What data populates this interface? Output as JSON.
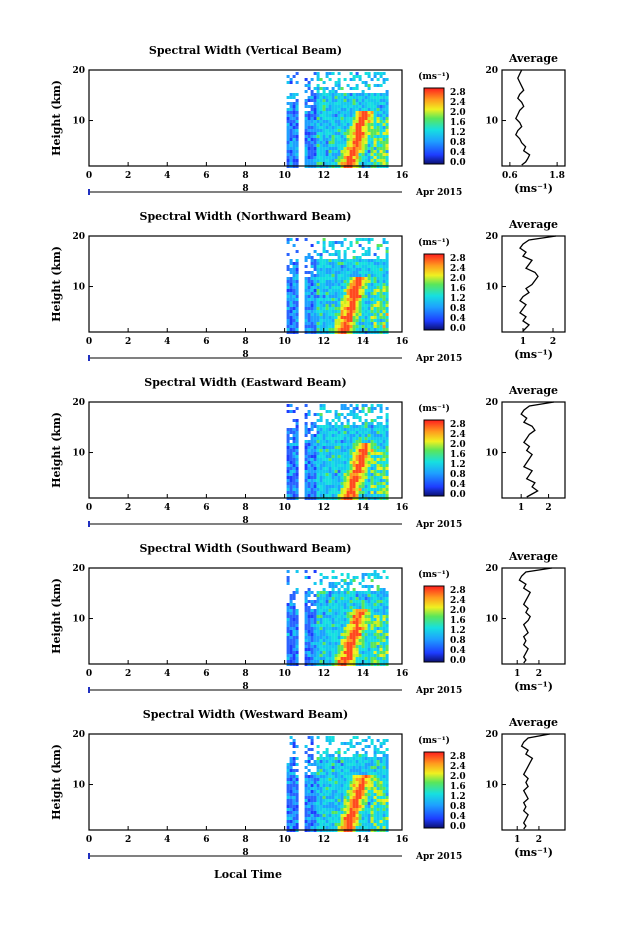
{
  "chart_data": [
    {
      "type": "heatmap",
      "title": "Spectral Width (Vertical Beam)",
      "ylabel": "Height (km)",
      "x_ticks": [
        "0",
        "2",
        "4",
        "6",
        "8",
        "10",
        "12",
        "14",
        "16"
      ],
      "y_ticks": [
        "10",
        "20"
      ],
      "xlim": [
        0,
        16
      ],
      "ylim": [
        1,
        20
      ],
      "date_label": "Apr 2015",
      "date_day": "8",
      "colorbar": {
        "unit": "(ms⁻¹)",
        "ticks": [
          "2.8",
          "2.4",
          "2.0",
          "1.6",
          "1.2",
          "0.8",
          "0.4",
          "0.0"
        ]
      },
      "data_start_hour": 10.1,
      "data_end_hour": 15.3,
      "hotspot_hour": 13.9
    },
    {
      "type": "heatmap",
      "title": "Spectral Width (Northward Beam)",
      "ylabel": "Height (km)",
      "x_ticks": [
        "0",
        "2",
        "4",
        "6",
        "8",
        "10",
        "12",
        "14",
        "16"
      ],
      "y_ticks": [
        "10",
        "20"
      ],
      "xlim": [
        0,
        16
      ],
      "ylim": [
        1,
        20
      ],
      "date_label": "Apr 2015",
      "date_day": "8",
      "colorbar": {
        "unit": "(ms⁻¹)",
        "ticks": [
          "2.8",
          "2.4",
          "2.0",
          "1.6",
          "1.2",
          "0.8",
          "0.4",
          "0.0"
        ]
      },
      "data_start_hour": 10.1,
      "data_end_hour": 15.3,
      "hotspot_hour": 13.6
    },
    {
      "type": "heatmap",
      "title": "Spectral Width (Eastward Beam)",
      "ylabel": "Height (km)",
      "x_ticks": [
        "0",
        "2",
        "4",
        "6",
        "8",
        "10",
        "12",
        "14",
        "16"
      ],
      "y_ticks": [
        "10",
        "20"
      ],
      "xlim": [
        0,
        16
      ],
      "ylim": [
        1,
        20
      ],
      "date_label": "Apr 2015",
      "date_day": "8",
      "colorbar": {
        "unit": "(ms⁻¹)",
        "ticks": [
          "2.8",
          "2.4",
          "2.0",
          "1.6",
          "1.2",
          "0.8",
          "0.4",
          "0.0"
        ]
      },
      "data_start_hour": 10.1,
      "data_end_hour": 15.3,
      "hotspot_hour": 13.9
    },
    {
      "type": "heatmap",
      "title": "Spectral Width (Southward Beam)",
      "ylabel": "Height (km)",
      "x_ticks": [
        "0",
        "2",
        "4",
        "6",
        "8",
        "10",
        "12",
        "14",
        "16"
      ],
      "y_ticks": [
        "10",
        "20"
      ],
      "xlim": [
        0,
        16
      ],
      "ylim": [
        1,
        20
      ],
      "date_label": "Apr 2015",
      "date_day": "8",
      "colorbar": {
        "unit": "(ms⁻¹)",
        "ticks": [
          "2.8",
          "2.4",
          "2.0",
          "1.6",
          "1.2",
          "0.8",
          "0.4",
          "0.0"
        ]
      },
      "data_start_hour": 10.1,
      "data_end_hour": 15.3,
      "hotspot_hour": 13.7
    },
    {
      "type": "heatmap",
      "title": "Spectral Width (Westward Beam)",
      "ylabel": "Height (km)",
      "x_ticks": [
        "0",
        "2",
        "4",
        "6",
        "8",
        "10",
        "12",
        "14",
        "16"
      ],
      "y_ticks": [
        "10",
        "20"
      ],
      "xlim": [
        0,
        16
      ],
      "ylim": [
        1,
        20
      ],
      "date_label": "Apr 2015",
      "date_day": "8",
      "colorbar": {
        "unit": "(ms⁻¹)",
        "ticks": [
          "2.8",
          "2.4",
          "2.0",
          "1.6",
          "1.2",
          "0.8",
          "0.4",
          "0.0"
        ]
      },
      "data_start_hour": 10.1,
      "data_end_hour": 15.3,
      "hotspot_hour": 13.8
    },
    {
      "type": "line",
      "title": "Average",
      "xlabel": "(ms⁻¹)",
      "x_ticks": [
        "0.6",
        "1.8"
      ],
      "xlim": [
        0.4,
        2.0
      ],
      "y_ticks": [
        "10",
        "20"
      ],
      "ylim": [
        1,
        20
      ],
      "series": [
        {
          "x": [
            0.9,
            0.85,
            0.8,
            0.85,
            0.9,
            0.95,
            0.85,
            0.8,
            0.9,
            0.95,
            0.85,
            0.8,
            0.75,
            0.85,
            0.9,
            0.8,
            0.75,
            0.85,
            0.9,
            1.0,
            0.95,
            1.1,
            1.05,
            1.0,
            0.9
          ],
          "y": [
            20,
            19.2,
            18.4,
            17.6,
            16.8,
            16,
            15.2,
            14.4,
            13.6,
            12.8,
            12,
            11.2,
            10.4,
            9.6,
            8.8,
            8,
            7.2,
            6.4,
            5.6,
            4.8,
            4,
            3.2,
            2.4,
            1.8,
            1.2
          ]
        }
      ]
    },
    {
      "type": "line",
      "title": "Average",
      "xlabel": "(ms⁻¹)",
      "x_ticks": [
        "1",
        "2"
      ],
      "xlim": [
        0.3,
        2.4
      ],
      "y_ticks": [
        "10",
        "20"
      ],
      "ylim": [
        1,
        20
      ],
      "series": [
        {
          "x": [
            2.1,
            1.2,
            1.0,
            0.9,
            1.1,
            1.0,
            1.3,
            1.2,
            1.1,
            1.4,
            1.5,
            1.4,
            1.3,
            1.1,
            1.2,
            1.0,
            0.9,
            1.1,
            1.0,
            0.9,
            1.1,
            1.0,
            1.2,
            1.1,
            1.0
          ],
          "y": [
            20,
            19.2,
            18.4,
            17.6,
            16.8,
            16,
            15.2,
            14.4,
            13.6,
            12.8,
            12,
            11.2,
            10.4,
            9.6,
            8.8,
            8,
            7.2,
            6.4,
            5.6,
            4.8,
            4,
            3.2,
            2.4,
            1.8,
            1.2
          ]
        }
      ]
    },
    {
      "type": "line",
      "title": "Average",
      "xlabel": "",
      "x_ticks": [
        "1",
        "2"
      ],
      "xlim": [
        0.3,
        2.6
      ],
      "y_ticks": [
        "10",
        "20"
      ],
      "ylim": [
        1,
        20
      ],
      "series": [
        {
          "x": [
            2.2,
            1.3,
            1.1,
            1.0,
            1.2,
            1.1,
            1.4,
            1.5,
            1.3,
            1.2,
            1.1,
            1.3,
            1.2,
            1.4,
            1.3,
            1.2,
            1.1,
            1.4,
            1.3,
            1.2,
            1.5,
            1.4,
            1.6,
            1.4,
            1.2
          ],
          "y": [
            20,
            19.2,
            18.4,
            17.6,
            16.8,
            16,
            15.2,
            14.4,
            13.6,
            12.8,
            12,
            11.2,
            10.4,
            9.6,
            8.8,
            8,
            7.2,
            6.4,
            5.6,
            4.8,
            4,
            3.2,
            2.4,
            1.8,
            1.2
          ]
        }
      ]
    },
    {
      "type": "line",
      "title": "Average",
      "xlabel": "(ms⁻¹)",
      "x_ticks": [
        "1",
        "2"
      ],
      "xlim": [
        0.3,
        3.2
      ],
      "y_ticks": [
        "10",
        "20"
      ],
      "ylim": [
        1,
        20
      ],
      "series": [
        {
          "x": [
            2.6,
            1.4,
            1.2,
            1.1,
            1.4,
            1.3,
            1.6,
            1.5,
            1.4,
            1.3,
            1.5,
            1.4,
            1.6,
            1.5,
            1.3,
            1.4,
            1.5,
            1.3,
            1.4,
            1.3,
            1.5,
            1.4,
            1.3,
            1.4,
            1.3
          ],
          "y": [
            20,
            19.2,
            18.4,
            17.6,
            16.8,
            16,
            15.2,
            14.4,
            13.6,
            12.8,
            12,
            11.2,
            10.4,
            9.6,
            8.8,
            8,
            7.2,
            6.4,
            5.6,
            4.8,
            4,
            3.2,
            2.4,
            1.8,
            1.2
          ]
        }
      ]
    },
    {
      "type": "line",
      "title": "Average",
      "xlabel": "(ms⁻¹)",
      "x_ticks": [
        "1",
        "2"
      ],
      "xlim": [
        0.3,
        3.2
      ],
      "y_ticks": [
        "10",
        "20"
      ],
      "ylim": [
        1,
        20
      ],
      "series": [
        {
          "x": [
            2.5,
            1.5,
            1.3,
            1.2,
            1.5,
            1.4,
            1.7,
            1.6,
            1.5,
            1.4,
            1.3,
            1.5,
            1.4,
            1.5,
            1.3,
            1.4,
            1.5,
            1.3,
            1.4,
            1.3,
            1.5,
            1.4,
            1.3,
            1.4,
            1.3
          ],
          "y": [
            20,
            19.2,
            18.4,
            17.6,
            16.8,
            16,
            15.2,
            14.4,
            13.6,
            12.8,
            12,
            11.2,
            10.4,
            9.6,
            8.8,
            8,
            7.2,
            6.4,
            5.6,
            4.8,
            4,
            3.2,
            2.4,
            1.8,
            1.2
          ]
        }
      ]
    }
  ],
  "footer": {
    "xlabel": "Local Time"
  }
}
